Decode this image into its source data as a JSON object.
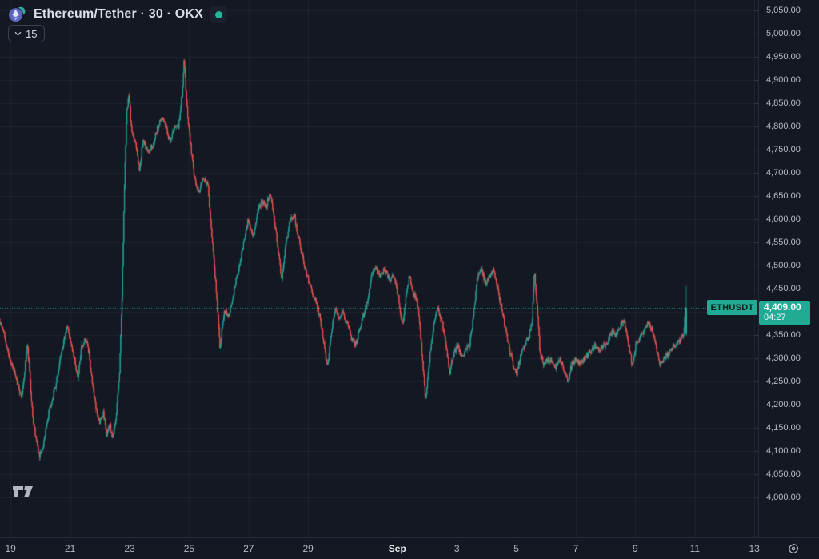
{
  "header": {
    "symbol_title": "Ethereum/Tether · 30 · OKX",
    "interval_button_label": "15",
    "status_color": "#26b69b"
  },
  "price_line": {
    "symbol_label": "ETHUSDT",
    "price": "4,409.00",
    "countdown": "04:27"
  },
  "price_scale": {
    "labels": [
      "5,050.00",
      "5,000.00",
      "4,950.00",
      "4,900.00",
      "4,850.00",
      "4,800.00",
      "4,750.00",
      "4,700.00",
      "4,650.00",
      "4,600.00",
      "4,550.00",
      "4,500.00",
      "4,450.00",
      "4,400.00",
      "4,350.00",
      "4,300.00",
      "4,250.00",
      "4,200.00",
      "4,150.00",
      "4,100.00",
      "4,050.00",
      "4,000.00"
    ],
    "start": 5050,
    "step": 50
  },
  "time_scale": {
    "ticks": [
      {
        "label": "19",
        "day": 0,
        "bold": false
      },
      {
        "label": "21",
        "day": 2,
        "bold": false
      },
      {
        "label": "23",
        "day": 4,
        "bold": false
      },
      {
        "label": "25",
        "day": 6,
        "bold": false
      },
      {
        "label": "27",
        "day": 8,
        "bold": false
      },
      {
        "label": "29",
        "day": 10,
        "bold": false
      },
      {
        "label": "Sep",
        "day": 13,
        "bold": true
      },
      {
        "label": "3",
        "day": 15,
        "bold": false
      },
      {
        "label": "5",
        "day": 17,
        "bold": false
      },
      {
        "label": "7",
        "day": 19,
        "bold": false
      },
      {
        "label": "9",
        "day": 21,
        "bold": false
      },
      {
        "label": "11",
        "day": 23,
        "bold": false
      },
      {
        "label": "13",
        "day": 25,
        "bold": false
      }
    ]
  },
  "colors": {
    "background": "#141823",
    "accent_teal": "#22ab94",
    "up": "#26a69a",
    "down": "#ef5350",
    "grid": "rgba(170,180,205,0.07)",
    "axis_text": "#b8bcc6",
    "status_dot": "#26b69b"
  },
  "chart_data": {
    "type": "candlestick",
    "symbol": "ETHUSDT",
    "symbol_description": "Ethereum/Tether",
    "exchange": "OKX",
    "interval_minutes": 30,
    "last_price": 4409.0,
    "countdown": "04:27",
    "ylim": [
      4000,
      5050
    ],
    "y_tick_step": 50,
    "x_unit": "days since Aug 19 00:00",
    "x_range": [
      -0.36,
      22.71
    ],
    "candles_per_day": 48,
    "grid": true,
    "legend_position": "none",
    "up_color": "#26a69a",
    "down_color": "#ef5350",
    "noise_seed": 7,
    "noise_amplitude": 13,
    "last_candle": {
      "open": 4352,
      "high": 4456,
      "low": 4348,
      "close": 4409
    },
    "price_path_days_price": [
      [
        -0.36,
        4385
      ],
      [
        -0.22,
        4360
      ],
      [
        -0.03,
        4300
      ],
      [
        0.18,
        4262
      ],
      [
        0.4,
        4215
      ],
      [
        0.59,
        4330
      ],
      [
        0.68,
        4250
      ],
      [
        0.77,
        4165
      ],
      [
        0.99,
        4090
      ],
      [
        1.12,
        4108
      ],
      [
        1.31,
        4185
      ],
      [
        1.53,
        4240
      ],
      [
        1.74,
        4315
      ],
      [
        1.93,
        4368
      ],
      [
        2.15,
        4302
      ],
      [
        2.28,
        4258
      ],
      [
        2.41,
        4325
      ],
      [
        2.55,
        4340
      ],
      [
        2.66,
        4310
      ],
      [
        2.76,
        4252
      ],
      [
        2.87,
        4200
      ],
      [
        3.01,
        4162
      ],
      [
        3.14,
        4180
      ],
      [
        3.25,
        4132
      ],
      [
        3.35,
        4158
      ],
      [
        3.46,
        4125
      ],
      [
        3.57,
        4180
      ],
      [
        3.68,
        4262
      ],
      [
        3.76,
        4420
      ],
      [
        3.84,
        4650
      ],
      [
        3.92,
        4830
      ],
      [
        4.0,
        4872
      ],
      [
        4.08,
        4795
      ],
      [
        4.22,
        4762
      ],
      [
        4.35,
        4708
      ],
      [
        4.48,
        4772
      ],
      [
        4.65,
        4745
      ],
      [
        4.81,
        4762
      ],
      [
        4.97,
        4800
      ],
      [
        5.13,
        4818
      ],
      [
        5.24,
        4798
      ],
      [
        5.37,
        4768
      ],
      [
        5.51,
        4796
      ],
      [
        5.67,
        4802
      ],
      [
        5.8,
        4878
      ],
      [
        5.85,
        4942
      ],
      [
        5.94,
        4848
      ],
      [
        6.04,
        4778
      ],
      [
        6.18,
        4700
      ],
      [
        6.34,
        4658
      ],
      [
        6.5,
        4692
      ],
      [
        6.66,
        4668
      ],
      [
        6.8,
        4550
      ],
      [
        6.93,
        4448
      ],
      [
        7.06,
        4325
      ],
      [
        7.2,
        4402
      ],
      [
        7.36,
        4388
      ],
      [
        7.52,
        4442
      ],
      [
        7.68,
        4492
      ],
      [
        7.84,
        4542
      ],
      [
        8.0,
        4596
      ],
      [
        8.17,
        4558
      ],
      [
        8.3,
        4612
      ],
      [
        8.46,
        4640
      ],
      [
        8.6,
        4622
      ],
      [
        8.73,
        4662
      ],
      [
        8.86,
        4608
      ],
      [
        9.03,
        4528
      ],
      [
        9.13,
        4468
      ],
      [
        9.27,
        4548
      ],
      [
        9.43,
        4602
      ],
      [
        9.56,
        4608
      ],
      [
        9.7,
        4558
      ],
      [
        9.83,
        4520
      ],
      [
        9.99,
        4478
      ],
      [
        10.13,
        4448
      ],
      [
        10.29,
        4418
      ],
      [
        10.42,
        4388
      ],
      [
        10.56,
        4328
      ],
      [
        10.67,
        4278
      ],
      [
        10.8,
        4352
      ],
      [
        10.93,
        4402
      ],
      [
        11.07,
        4388
      ],
      [
        11.2,
        4398
      ],
      [
        11.34,
        4372
      ],
      [
        11.47,
        4345
      ],
      [
        11.61,
        4328
      ],
      [
        11.74,
        4362
      ],
      [
        11.88,
        4392
      ],
      [
        12.01,
        4422
      ],
      [
        12.12,
        4468
      ],
      [
        12.28,
        4495
      ],
      [
        12.44,
        4478
      ],
      [
        12.6,
        4492
      ],
      [
        12.76,
        4468
      ],
      [
        12.92,
        4478
      ],
      [
        13.06,
        4428
      ],
      [
        13.19,
        4368
      ],
      [
        13.33,
        4442
      ],
      [
        13.43,
        4478
      ],
      [
        13.57,
        4438
      ],
      [
        13.7,
        4418
      ],
      [
        13.84,
        4318
      ],
      [
        13.97,
        4208
      ],
      [
        14.11,
        4302
      ],
      [
        14.24,
        4372
      ],
      [
        14.38,
        4408
      ],
      [
        14.51,
        4382
      ],
      [
        14.64,
        4338
      ],
      [
        14.78,
        4270
      ],
      [
        14.91,
        4308
      ],
      [
        15.05,
        4330
      ],
      [
        15.18,
        4300
      ],
      [
        15.32,
        4318
      ],
      [
        15.45,
        4332
      ],
      [
        15.59,
        4395
      ],
      [
        15.72,
        4478
      ],
      [
        15.85,
        4490
      ],
      [
        15.99,
        4462
      ],
      [
        16.12,
        4478
      ],
      [
        16.26,
        4495
      ],
      [
        16.37,
        4458
      ],
      [
        16.5,
        4418
      ],
      [
        16.64,
        4368
      ],
      [
        16.77,
        4328
      ],
      [
        16.9,
        4288
      ],
      [
        17.04,
        4265
      ],
      [
        17.17,
        4308
      ],
      [
        17.31,
        4330
      ],
      [
        17.44,
        4345
      ],
      [
        17.55,
        4378
      ],
      [
        17.63,
        4492
      ],
      [
        17.71,
        4418
      ],
      [
        17.82,
        4308
      ],
      [
        17.95,
        4288
      ],
      [
        18.09,
        4298
      ],
      [
        18.22,
        4292
      ],
      [
        18.35,
        4282
      ],
      [
        18.49,
        4298
      ],
      [
        18.62,
        4278
      ],
      [
        18.76,
        4252
      ],
      [
        18.89,
        4288
      ],
      [
        19.03,
        4298
      ],
      [
        19.16,
        4288
      ],
      [
        19.3,
        4298
      ],
      [
        19.43,
        4308
      ],
      [
        19.56,
        4322
      ],
      [
        19.7,
        4328
      ],
      [
        19.83,
        4318
      ],
      [
        19.97,
        4328
      ],
      [
        20.1,
        4338
      ],
      [
        20.24,
        4358
      ],
      [
        20.37,
        4348
      ],
      [
        20.5,
        4368
      ],
      [
        20.64,
        4382
      ],
      [
        20.77,
        4338
      ],
      [
        20.91,
        4288
      ],
      [
        21.04,
        4328
      ],
      [
        21.18,
        4348
      ],
      [
        21.31,
        4358
      ],
      [
        21.44,
        4378
      ],
      [
        21.58,
        4362
      ],
      [
        21.71,
        4328
      ],
      [
        21.85,
        4285
      ],
      [
        21.98,
        4298
      ],
      [
        22.12,
        4308
      ],
      [
        22.25,
        4322
      ],
      [
        22.38,
        4328
      ],
      [
        22.52,
        4338
      ],
      [
        22.65,
        4355
      ],
      [
        22.71,
        4409
      ]
    ]
  }
}
